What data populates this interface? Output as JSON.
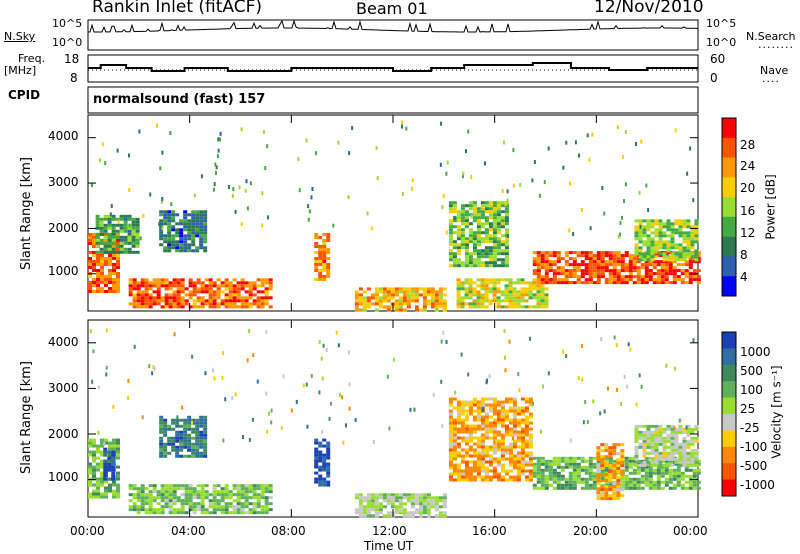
{
  "header": {
    "station": "Rankin Inlet (fitACF)",
    "beam": "Beam 01",
    "date": "12/Nov/2010"
  },
  "strip": {
    "nsky_label": "N.Sky",
    "nsky_ticks": [
      "10^5",
      "10^0"
    ],
    "nsearch_ticks": [
      "10^5",
      "10^0"
    ],
    "nsearch_label": "N.Search",
    "freq_label_1": "Freq.",
    "freq_label_2": "[MHz]",
    "freq_ticks": [
      "18",
      "8"
    ],
    "nave_ticks": [
      "60",
      "0"
    ],
    "nave_label": "Nave",
    "cpid_label": "CPID",
    "cpid_text": "normalsound (fast) 157"
  },
  "axes": {
    "ylabel": "Slant Range [km]",
    "xlabel": "Time UT",
    "x_ticks": [
      "00:00",
      "04:00",
      "08:00",
      "12:00",
      "16:00",
      "20:00",
      "00:00"
    ],
    "y_ticks": [
      "1000",
      "2000",
      "3000",
      "4000"
    ]
  },
  "colorbars": {
    "power_label": "Power [dB]",
    "power_ticks": [
      "28",
      "24",
      "20",
      "16",
      "12",
      "8",
      "4"
    ],
    "power_colors": [
      "#ff0000",
      "#ff5500",
      "#ff9900",
      "#ffcc00",
      "#99dd33",
      "#44aa44",
      "#2d7a52",
      "#2f5fb0",
      "#0000ff"
    ],
    "velocity_label": "Velocity [m s⁻¹]",
    "velocity_ticks": [
      "1000",
      "500",
      "100",
      "25",
      "-25",
      "-100",
      "-500",
      "-1000"
    ],
    "velocity_colors": [
      "#1c3fb8",
      "#2e6ea0",
      "#3f8a5a",
      "#5fb05a",
      "#99dd33",
      "#c8c8c8",
      "#ffcc00",
      "#ff8800",
      "#ff5500",
      "#ff0000"
    ]
  },
  "chart_data": {
    "type": "heatmap",
    "title": "Rankin Inlet (fitACF) Beam 01 12/Nov/2010",
    "xlabel": "Time UT",
    "ylabel": "Slant Range [km]",
    "x_unit": "hours UT",
    "xlim": [
      0,
      24
    ],
    "ylim": [
      180,
      4500
    ],
    "panels": [
      {
        "name": "Power [dB]",
        "cbar_range": [
          0,
          32
        ],
        "regions": [
          {
            "t0": 0.0,
            "t1": 1.2,
            "r0": 600,
            "r1": 1900,
            "value": 26
          },
          {
            "t0": 0.3,
            "t1": 2.0,
            "r0": 1500,
            "r1": 2300,
            "value": 12
          },
          {
            "t0": 1.6,
            "t1": 7.2,
            "r0": 250,
            "r1": 900,
            "value": 26
          },
          {
            "t0": 2.8,
            "t1": 4.6,
            "r0": 1500,
            "r1": 2400,
            "value": 8
          },
          {
            "t0": 8.9,
            "t1": 9.5,
            "r0": 900,
            "r1": 1900,
            "value": 24
          },
          {
            "t0": 10.5,
            "t1": 14.0,
            "r0": 200,
            "r1": 700,
            "value": 22
          },
          {
            "t0": 14.2,
            "t1": 16.5,
            "r0": 1200,
            "r1": 2600,
            "value": 14
          },
          {
            "t0": 14.5,
            "t1": 18.0,
            "r0": 300,
            "r1": 900,
            "value": 18
          },
          {
            "t0": 17.5,
            "t1": 24.0,
            "r0": 800,
            "r1": 1500,
            "value": 27
          },
          {
            "t0": 21.5,
            "t1": 24.0,
            "r0": 1300,
            "r1": 2200,
            "value": 16
          }
        ]
      },
      {
        "name": "Velocity [m s-1]",
        "cbar_range": [
          -1000,
          1000
        ],
        "regions": [
          {
            "t0": 0.0,
            "t1": 1.2,
            "r0": 600,
            "r1": 1900,
            "value": 300
          },
          {
            "t0": 0.6,
            "t1": 1.0,
            "r0": 1000,
            "r1": 1700,
            "value": 800
          },
          {
            "t0": 1.6,
            "t1": 7.2,
            "r0": 250,
            "r1": 900,
            "value": 200
          },
          {
            "t0": 2.8,
            "t1": 4.6,
            "r0": 1500,
            "r1": 2400,
            "value": 600
          },
          {
            "t0": 8.9,
            "t1": 9.5,
            "r0": 900,
            "r1": 1900,
            "value": 900
          },
          {
            "t0": 10.5,
            "t1": 14.0,
            "r0": 200,
            "r1": 700,
            "value": 50
          },
          {
            "t0": 14.2,
            "t1": 17.5,
            "r0": 1000,
            "r1": 2800,
            "value": -400
          },
          {
            "t0": 17.5,
            "t1": 24.0,
            "r0": 800,
            "r1": 1500,
            "value": 250
          },
          {
            "t0": 20.0,
            "t1": 21.0,
            "r0": 600,
            "r1": 1800,
            "value": -400
          },
          {
            "t0": 21.5,
            "t1": 24.0,
            "r0": 1300,
            "r1": 2200,
            "value": 20
          }
        ]
      }
    ]
  }
}
